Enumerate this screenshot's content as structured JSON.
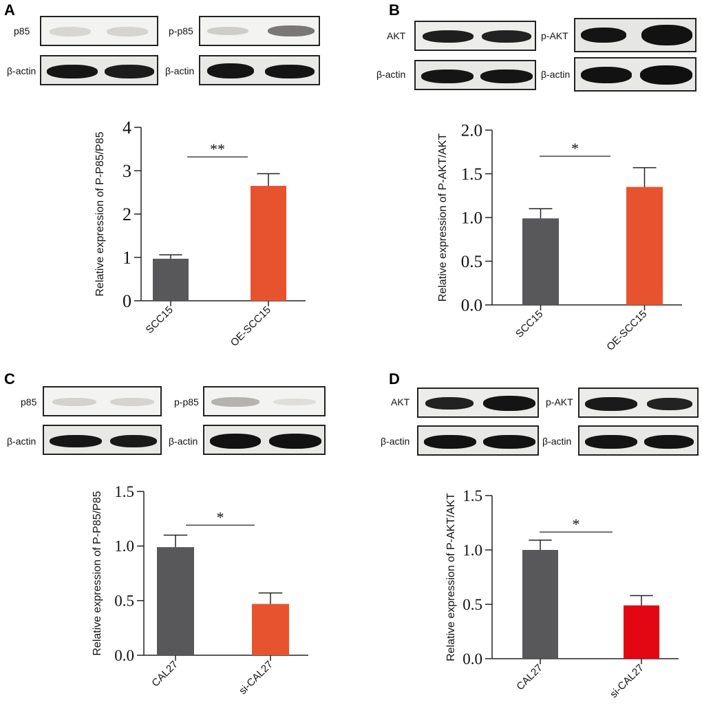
{
  "panels": {
    "A": "A",
    "B": "B",
    "C": "C",
    "D": "D"
  },
  "blots": {
    "A": {
      "protein1": "p85",
      "protein2": "p-p85",
      "loading1": "β-actin",
      "loading2": "β-actin"
    },
    "B": {
      "protein1": "AKT",
      "protein2": "p-AKT",
      "loading1": "β-actin",
      "loading2": "β-actin"
    },
    "C": {
      "protein1": "p85",
      "protein2": "p-p85",
      "loading1": "β-actin",
      "loading2": "β-actin"
    },
    "D": {
      "protein1": "AKT",
      "protein2": "p-AKT",
      "loading1": "β-actin",
      "loading2": "β-actin"
    }
  },
  "chart_data": [
    {
      "panel": "A",
      "type": "bar",
      "categories": [
        "SCC15",
        "OE-SCC15"
      ],
      "values": [
        0.97,
        2.65
      ],
      "errors": [
        0.09,
        0.28
      ],
      "colors": [
        "#58585a",
        "#e8532f"
      ],
      "ylabel": "Relative expression of  P-P85/P85",
      "ylim": [
        0,
        4
      ],
      "yticks": [
        "0",
        "1",
        "2",
        "3",
        "4"
      ],
      "significance": "**",
      "grid": false
    },
    {
      "panel": "B",
      "type": "bar",
      "categories": [
        "SCC15",
        "OE-SCC15"
      ],
      "values": [
        0.99,
        1.35
      ],
      "errors": [
        0.11,
        0.22
      ],
      "colors": [
        "#58585a",
        "#e8532f"
      ],
      "ylabel": "Relative expression of  P-AKT/AKT",
      "ylim": [
        0,
        2.0
      ],
      "yticks": [
        "0.0",
        "0.5",
        "1.0",
        "1.5",
        "2.0"
      ],
      "significance": "*",
      "grid": false
    },
    {
      "panel": "C",
      "type": "bar",
      "categories": [
        "CAL27",
        "si-CAL27"
      ],
      "values": [
        0.99,
        0.47
      ],
      "errors": [
        0.11,
        0.1
      ],
      "colors": [
        "#58585a",
        "#e8532f"
      ],
      "ylabel": "Relative expression of  P-P85/P85",
      "ylim": [
        0,
        1.5
      ],
      "yticks": [
        "0.0",
        "0.5",
        "1.0",
        "1.5"
      ],
      "significance": "*",
      "grid": false
    },
    {
      "panel": "D",
      "type": "bar",
      "categories": [
        "CAL27",
        "si-CAL27"
      ],
      "values": [
        1.0,
        0.49
      ],
      "errors": [
        0.09,
        0.09
      ],
      "colors": [
        "#58585a",
        "#e30613"
      ],
      "ylabel": "Relative expression of  P-AKT/AKT",
      "ylim": [
        0,
        1.5
      ],
      "yticks": [
        "0.0",
        "0.5",
        "1.0",
        "1.5"
      ],
      "significance": "*",
      "grid": false
    }
  ]
}
